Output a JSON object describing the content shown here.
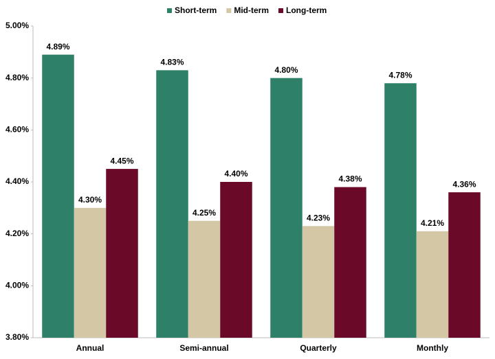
{
  "chart_data": {
    "type": "bar",
    "categories": [
      "Annual",
      "Semi-annual",
      "Quarterly",
      "Monthly"
    ],
    "series": [
      {
        "name": "Short-term",
        "color": "#2e8068",
        "values": [
          4.89,
          4.83,
          4.8,
          4.78
        ],
        "value_labels": [
          "4.89%",
          "4.83%",
          "4.80%",
          "4.78%"
        ]
      },
      {
        "name": "Mid-term",
        "color": "#d4c7a6",
        "values": [
          4.3,
          4.25,
          4.23,
          4.21
        ],
        "value_labels": [
          "4.30%",
          "4.25%",
          "4.23%",
          "4.21%"
        ]
      },
      {
        "name": "Long-term",
        "color": "#6b0a28",
        "values": [
          4.45,
          4.4,
          4.38,
          4.36
        ],
        "value_labels": [
          "4.45%",
          "4.40%",
          "4.38%",
          "4.36%"
        ]
      }
    ],
    "ylim": [
      3.8,
      5.0
    ],
    "yticks": [
      {
        "value": 3.8,
        "label": "3.80%"
      },
      {
        "value": 4.0,
        "label": "4.00%"
      },
      {
        "value": 4.2,
        "label": "4.20%"
      },
      {
        "value": 4.4,
        "label": "4.40%"
      },
      {
        "value": 4.6,
        "label": "4.60%"
      },
      {
        "value": 4.8,
        "label": "4.80%"
      },
      {
        "value": 5.0,
        "label": "5.00%"
      }
    ],
    "legend": "top",
    "grid": false
  }
}
